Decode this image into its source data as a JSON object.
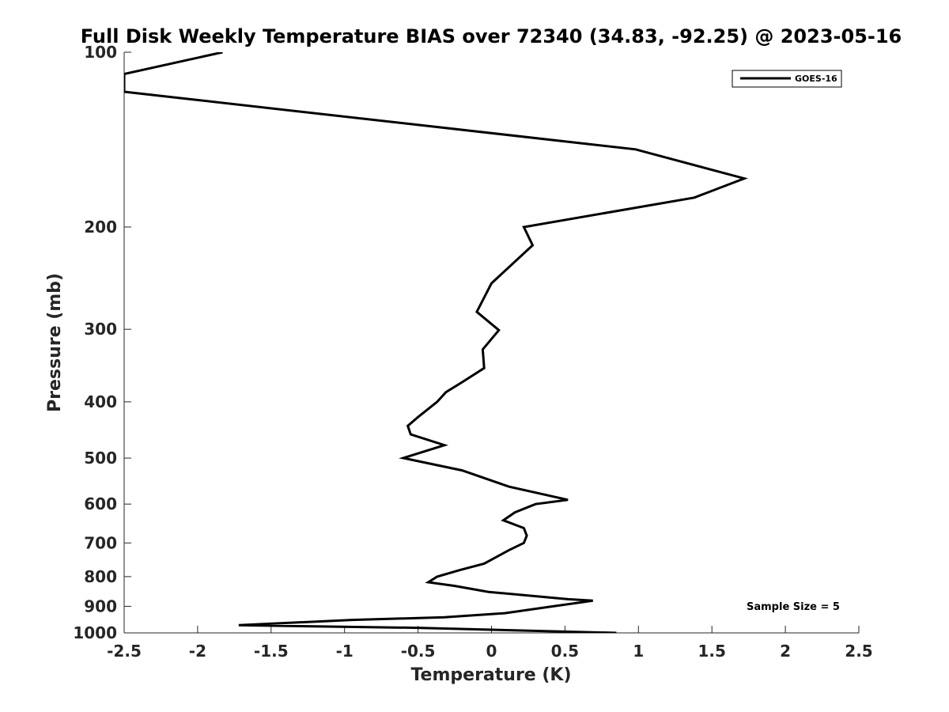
{
  "chart_data": {
    "type": "line",
    "title": "Full Disk Weekly Temperature BIAS over 72340 (34.83, -92.25) @ 2023-05-16",
    "xlabel": "Temperature (K)",
    "ylabel": "Pressure (mb)",
    "xlim": [
      -2.5,
      2.5
    ],
    "ylim": [
      100,
      1000
    ],
    "y_scale": "log",
    "y_reversed": true,
    "xticks": [
      -2.5,
      -2,
      -1.5,
      -1,
      -0.5,
      0,
      0.5,
      1,
      1.5,
      2,
      2.5
    ],
    "xtick_labels": [
      "-2.5",
      "-2",
      "-1.5",
      "-1",
      "-0.5",
      "0",
      "0.5",
      "1",
      "1.5",
      "2",
      "2.5"
    ],
    "yticks": [
      100,
      200,
      300,
      400,
      500,
      600,
      700,
      800,
      900,
      1000
    ],
    "ytick_labels": [
      "100",
      "200",
      "300",
      "400",
      "500",
      "600",
      "700",
      "800",
      "900",
      "1000"
    ],
    "grid": false,
    "legend": {
      "position": "top-right",
      "entries": [
        "GOES-16"
      ]
    },
    "annotation": "Sample Size = 5",
    "series": [
      {
        "name": "GOES-16",
        "color": "#000000",
        "points": [
          [
            -1.83,
            100
          ],
          [
            -2.5,
            109
          ],
          [
            -2.5,
            117
          ],
          [
            0.98,
            147
          ],
          [
            1.72,
            165
          ],
          [
            1.38,
            178
          ],
          [
            0.22,
            200
          ],
          [
            0.28,
            215
          ],
          [
            0.0,
            250
          ],
          [
            -0.1,
            280
          ],
          [
            0.05,
            301
          ],
          [
            -0.06,
            325
          ],
          [
            -0.05,
            350
          ],
          [
            -0.2,
            370
          ],
          [
            -0.31,
            385
          ],
          [
            -0.37,
            400
          ],
          [
            -0.5,
            425
          ],
          [
            -0.57,
            440
          ],
          [
            -0.55,
            455
          ],
          [
            -0.32,
            475
          ],
          [
            -0.6,
            500
          ],
          [
            -0.2,
            525
          ],
          [
            0.12,
            560
          ],
          [
            0.52,
            590
          ],
          [
            0.3,
            600
          ],
          [
            0.16,
            620
          ],
          [
            0.08,
            640
          ],
          [
            0.22,
            660
          ],
          [
            0.24,
            680
          ],
          [
            0.22,
            700
          ],
          [
            0.12,
            720
          ],
          [
            -0.05,
            760
          ],
          [
            -0.22,
            780
          ],
          [
            -0.37,
            800
          ],
          [
            -0.43,
            818
          ],
          [
            -0.25,
            830
          ],
          [
            -0.02,
            850
          ],
          [
            0.52,
            875
          ],
          [
            0.69,
            880
          ],
          [
            0.42,
            900
          ],
          [
            0.09,
            925
          ],
          [
            -0.32,
            940
          ],
          [
            -0.95,
            950
          ],
          [
            -1.72,
            970
          ],
          [
            -0.5,
            980
          ],
          [
            0.85,
            1000
          ]
        ]
      }
    ]
  }
}
